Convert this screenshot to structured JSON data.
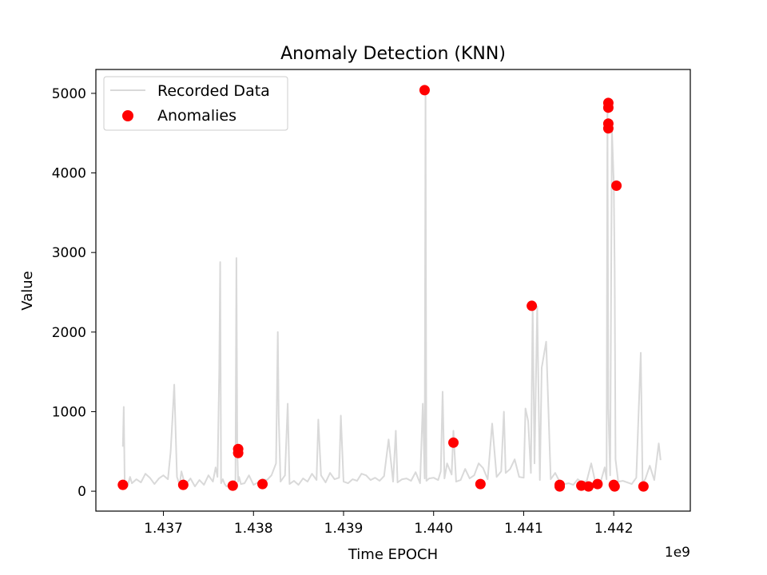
{
  "chart_data": {
    "type": "line",
    "title": "Anomaly Detection (KNN)",
    "xlabel": "Time EPOCH",
    "ylabel": "Value",
    "x_offset_label": "1e9",
    "xlim": [
      1.43625,
      1.44285
    ],
    "ylim": [
      -250,
      5300
    ],
    "x_ticks": [
      1.437,
      1.438,
      1.439,
      1.44,
      1.441,
      1.442
    ],
    "x_tick_labels": [
      "1.437",
      "1.438",
      "1.439",
      "1.440",
      "1.441",
      "1.442"
    ],
    "y_ticks": [
      0,
      1000,
      2000,
      3000,
      4000,
      5000
    ],
    "y_tick_labels": [
      "0",
      "1000",
      "2000",
      "3000",
      "4000",
      "5000"
    ],
    "legend": {
      "placement": "upper-left",
      "entries": [
        "Recorded Data",
        "Anomalies"
      ]
    },
    "colors": {
      "line": "#d9d9d9",
      "anomaly": "#ff0000"
    },
    "series": [
      {
        "name": "Recorded Data",
        "x": [
          1.43655,
          1.43656,
          1.43657,
          1.43659,
          1.4366,
          1.43663,
          1.43665,
          1.4367,
          1.43675,
          1.4368,
          1.43685,
          1.4369,
          1.43695,
          1.437,
          1.43705,
          1.43708,
          1.4371,
          1.43712,
          1.43715,
          1.43718,
          1.4372,
          1.43723,
          1.43725,
          1.4373,
          1.43735,
          1.4374,
          1.43745,
          1.4375,
          1.43755,
          1.43758,
          1.4376,
          1.43762,
          1.43763,
          1.43764,
          1.43766,
          1.43768,
          1.4377,
          1.43775,
          1.4378,
          1.43781,
          1.43782,
          1.43783,
          1.43784,
          1.43786,
          1.4379,
          1.43795,
          1.438,
          1.43805,
          1.4381,
          1.43815,
          1.4382,
          1.43825,
          1.43827,
          1.43828,
          1.4383,
          1.43835,
          1.43838,
          1.4384,
          1.43845,
          1.4385,
          1.43855,
          1.4386,
          1.43865,
          1.4387,
          1.43872,
          1.43875,
          1.4388,
          1.43885,
          1.4389,
          1.43895,
          1.43897,
          1.439,
          1.43905,
          1.4391,
          1.43915,
          1.4392,
          1.43925,
          1.4393,
          1.43935,
          1.4394,
          1.43945,
          1.4395,
          1.43955,
          1.43958,
          1.4396,
          1.43965,
          1.4397,
          1.43975,
          1.4398,
          1.43985,
          1.43988,
          1.4399,
          1.43991,
          1.43992,
          1.43995,
          1.44,
          1.44005,
          1.44008,
          1.4401,
          1.44012,
          1.44015,
          1.4402,
          1.44022,
          1.44025,
          1.4403,
          1.44035,
          1.4404,
          1.44045,
          1.4405,
          1.44055,
          1.4406,
          1.44065,
          1.4407,
          1.44075,
          1.44078,
          1.4408,
          1.44085,
          1.4409,
          1.44095,
          1.441,
          1.44102,
          1.44105,
          1.44108,
          1.4411,
          1.44112,
          1.44115,
          1.44118,
          1.4412,
          1.44125,
          1.4413,
          1.44135,
          1.4414,
          1.44145,
          1.4415,
          1.44155,
          1.4416,
          1.44165,
          1.4417,
          1.44175,
          1.4418,
          1.44185,
          1.4419,
          1.44192,
          1.44193,
          1.44194,
          1.44196,
          1.44198,
          1.442,
          1.44201,
          1.44202,
          1.44205,
          1.4421,
          1.44215,
          1.4422,
          1.44225,
          1.4423,
          1.44232,
          1.44235,
          1.4424,
          1.44245,
          1.4425,
          1.44252
        ],
        "y": [
          560,
          1060,
          80,
          120,
          60,
          180,
          100,
          150,
          110,
          220,
          170,
          90,
          160,
          200,
          150,
          500,
          900,
          1340,
          180,
          80,
          250,
          120,
          90,
          160,
          60,
          140,
          80,
          200,
          120,
          300,
          180,
          1500,
          2880,
          100,
          150,
          90,
          60,
          90,
          140,
          2930,
          500,
          120,
          180,
          90,
          100,
          200,
          80,
          110,
          150,
          140,
          200,
          350,
          2000,
          950,
          120,
          200,
          1100,
          90,
          130,
          80,
          160,
          120,
          220,
          140,
          900,
          200,
          110,
          230,
          150,
          170,
          950,
          120,
          100,
          150,
          130,
          220,
          200,
          140,
          170,
          130,
          190,
          650,
          120,
          760,
          110,
          150,
          160,
          130,
          240,
          100,
          1100,
          160,
          5020,
          130,
          160,
          170,
          140,
          250,
          1250,
          160,
          350,
          210,
          760,
          120,
          140,
          280,
          160,
          200,
          350,
          290,
          150,
          850,
          180,
          250,
          1000,
          230,
          280,
          400,
          180,
          170,
          1040,
          880,
          230,
          2330,
          350,
          2320,
          140,
          1550,
          1880,
          150,
          230,
          120,
          90,
          100,
          80,
          150,
          110,
          130,
          350,
          90,
          100,
          300,
          150,
          4890,
          1050,
          200,
          4540,
          3880,
          2820,
          400,
          120,
          130,
          110,
          90,
          170,
          1740,
          100,
          150,
          320,
          140,
          600,
          390
        ]
      },
      {
        "name": "Anomalies",
        "x": [
          1.43655,
          1.43722,
          1.43777,
          1.43783,
          1.43783,
          1.4381,
          1.4399,
          1.44022,
          1.44052,
          1.44109,
          1.4414,
          1.4414,
          1.44164,
          1.44172,
          1.44182,
          1.44194,
          1.44194,
          1.44194,
          1.44194,
          1.442,
          1.44201,
          1.44203,
          1.44233
        ],
        "y": [
          80,
          80,
          70,
          530,
          480,
          90,
          5040,
          610,
          90,
          2330,
          80,
          60,
          70,
          60,
          90,
          4880,
          4820,
          4620,
          4560,
          80,
          60,
          3840,
          60
        ]
      }
    ]
  }
}
